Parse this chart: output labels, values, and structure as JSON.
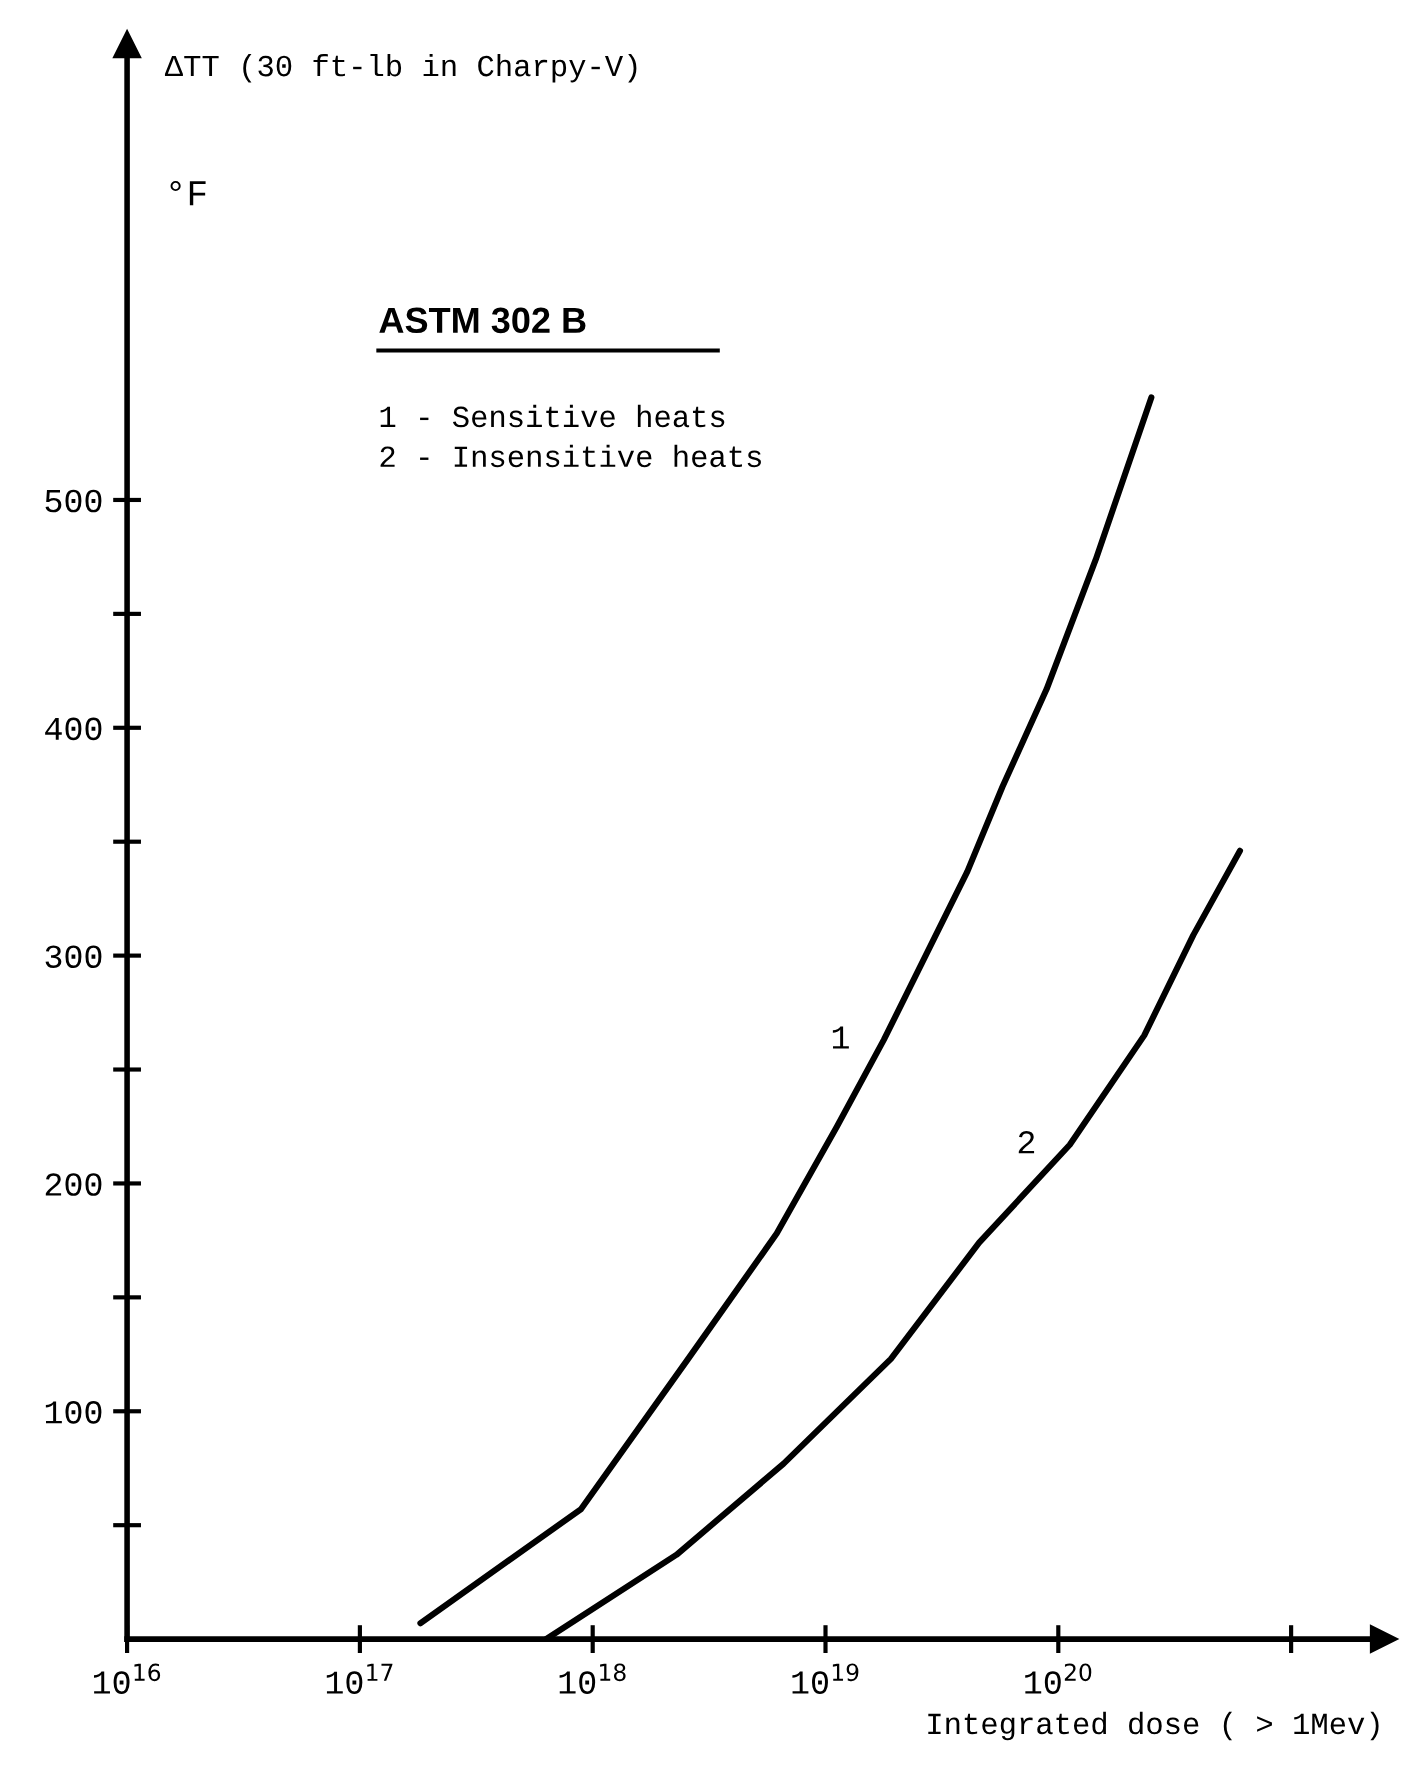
{
  "chart_data": {
    "type": "line",
    "ylabel": "ΔTT (30 ft-lb in Charpy-V)",
    "xlabel": "Integrated dose ( > 1Mev)",
    "legend_title": "ASTM 302 B",
    "annotations": [
      "°F",
      "1 - Sensitive heats",
      "2 - Insensitive heats"
    ],
    "series": [
      {
        "name": "1",
        "color": "#000000",
        "x": [
          1.82e+17,
          8.9e+17,
          2.57e+18,
          6.17e+18,
          1.12e+19,
          1.78e+19,
          4.07e+19,
          5.75e+19,
          8.91e+19,
          1.45e+20,
          2.51e+20
        ],
        "values": [
          7,
          57,
          123,
          178,
          225,
          263,
          337,
          374,
          417,
          474,
          545
        ]
      },
      {
        "name": "2",
        "color": "#000000",
        "x": [
          6.31e+17,
          2.29e+18,
          6.61e+18,
          1.91e+19,
          4.57e+19,
          1.12e+20,
          2.34e+20,
          3.8e+20,
          6.03e+20
        ],
        "values": [
          0,
          37,
          77,
          123,
          174,
          217,
          265,
          309,
          346
        ]
      }
    ],
    "log": "x",
    "xlim": [
      1e+16,
      2.5e+21
    ],
    "ylim": [
      0,
      700
    ],
    "xticks": [
      {
        "value": 1e+16,
        "label": "10$^{16}$"
      },
      {
        "value": 1e+17,
        "label": "10$^{17}$"
      },
      {
        "value": 1e+18,
        "label": "10$^{18}$"
      },
      {
        "value": 1e+19,
        "label": "10$^{19}$"
      },
      {
        "value": 1e+20,
        "label": "10$^{20}$"
      },
      {
        "value": 1e+21,
        "label": null
      }
    ],
    "yticks": [
      {
        "value": 50,
        "label": null
      },
      100,
      {
        "value": 150,
        "label": null
      },
      200,
      {
        "value": 250,
        "label": null
      },
      300,
      {
        "value": 350,
        "label": null
      },
      400,
      {
        "value": 450,
        "label": null
      },
      500
    ],
    "grid": false,
    "legend": false,
    "marker": "none",
    "line_style": "solid"
  }
}
